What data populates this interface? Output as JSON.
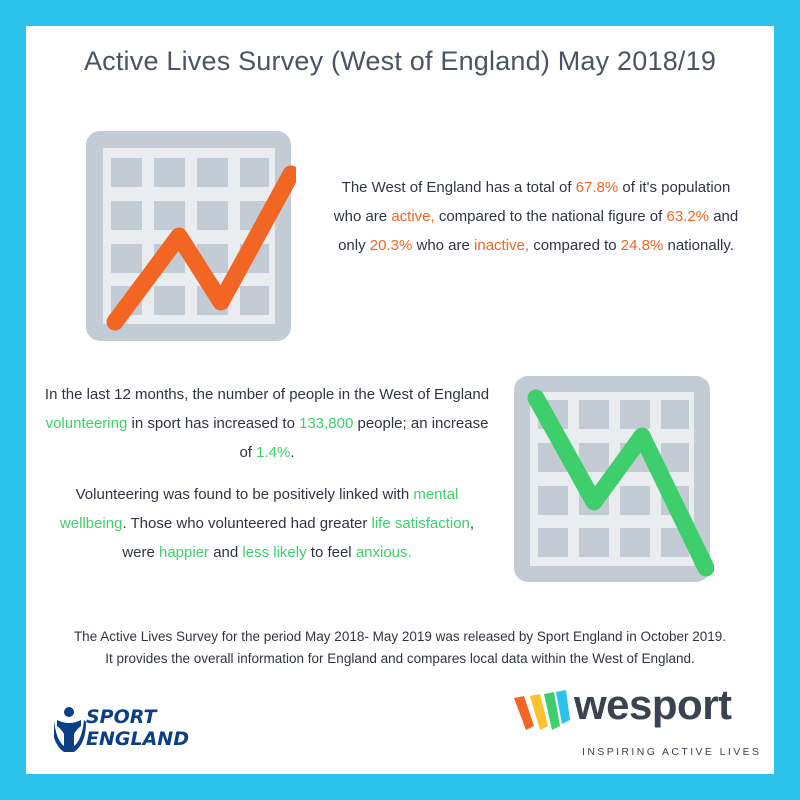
{
  "title": "Active Lives Survey (West of England) May 2018/19",
  "para1": {
    "t1": "The West of England has a total of ",
    "v1": "67.8%",
    "t2": " of it's population who are ",
    "v2": "active,",
    "t3": " compared to the national figure of ",
    "v3": "63.2%",
    "t4": " and only ",
    "v4": "20.3%",
    "t5": " who are ",
    "v5": "inactive,",
    "t6": " compared to ",
    "v6": "24.8%",
    "t7": " nationally."
  },
  "para2": {
    "t1": "In the last 12 months, the number of people in the West of England ",
    "v1": "volunteering",
    "t2": " in sport has increased to ",
    "v2": "133,800",
    "t3": " people; an increase of ",
    "v3": "1.4%",
    "t4": "."
  },
  "para3": {
    "t1": "Volunteering was found to be positively linked with ",
    "v1": "mental wellbeing",
    "t2": ". Those who volunteered had greater ",
    "v2": "life satisfaction",
    "t3": ", were ",
    "v3": "happier",
    "t4": " and ",
    "v4": "less likely",
    "t5": " to feel ",
    "v5": "anxious."
  },
  "footer": {
    "line1": "The Active Lives Survey for the period May 2018- May 2019 was released by Sport England in October 2019.",
    "line2": "It provides the overall information for England and compares local data within the West of England."
  },
  "logos": {
    "sport_england_line1": "SPORT",
    "sport_england_line2": "ENGLAND",
    "wesport_name": "wesport",
    "wesport_tagline": "INSPIRING ACTIVE LIVES"
  },
  "icons": {
    "up": "chart-increasing-icon",
    "down": "chart-decreasing-icon"
  },
  "colors": {
    "background": "#2ac3ec",
    "accent_orange": "#f26522",
    "accent_green": "#3ecf6c",
    "title": "#4b5462"
  }
}
